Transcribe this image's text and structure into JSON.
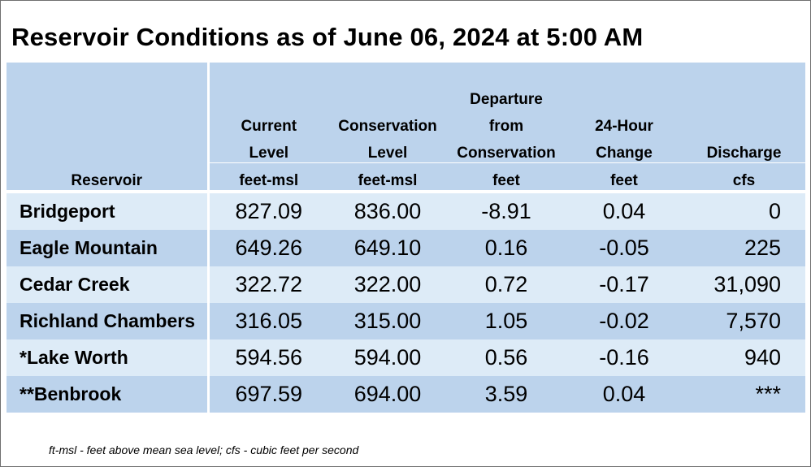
{
  "title": "Reservoir Conditions as of June 06, 2024 at 5:00 AM",
  "chart_data": {
    "type": "table",
    "columns": [
      {
        "lines": [
          "",
          "",
          "",
          "Reservoir"
        ],
        "unit": ""
      },
      {
        "lines": [
          "",
          "Current",
          "Level",
          "feet-msl"
        ],
        "unit": "feet-msl"
      },
      {
        "lines": [
          "",
          "Conservation",
          "Level",
          "feet-msl"
        ],
        "unit": "feet-msl"
      },
      {
        "lines": [
          "Departure",
          "from",
          "Conservation",
          "feet"
        ],
        "unit": "feet"
      },
      {
        "lines": [
          "",
          "24-Hour",
          "Change",
          "feet"
        ],
        "unit": "feet"
      },
      {
        "lines": [
          "",
          "",
          "Discharge",
          "cfs"
        ],
        "unit": "cfs"
      }
    ],
    "rows": [
      {
        "reservoir": "Bridgeport",
        "current_level": "827.09",
        "conservation_level": "836.00",
        "departure": "-8.91",
        "change_24h": "0.04",
        "discharge": "0"
      },
      {
        "reservoir": "Eagle Mountain",
        "current_level": "649.26",
        "conservation_level": "649.10",
        "departure": "0.16",
        "change_24h": "-0.05",
        "discharge": "225"
      },
      {
        "reservoir": "Cedar Creek",
        "current_level": "322.72",
        "conservation_level": "322.00",
        "departure": "0.72",
        "change_24h": "-0.17",
        "discharge": "31,090"
      },
      {
        "reservoir": "Richland Chambers",
        "current_level": "316.05",
        "conservation_level": "315.00",
        "departure": "1.05",
        "change_24h": "-0.02",
        "discharge": "7,570"
      },
      {
        "reservoir": "*Lake Worth",
        "current_level": "594.56",
        "conservation_level": "594.00",
        "departure": "0.56",
        "change_24h": "-0.16",
        "discharge": "940"
      },
      {
        "reservoir": "**Benbrook",
        "current_level": "697.59",
        "conservation_level": "694.00",
        "departure": "3.59",
        "change_24h": "0.04",
        "discharge": "***"
      }
    ]
  },
  "footnote": "ft-msl - feet above mean sea level; cfs - cubic feet per second",
  "colors": {
    "header_bg": "#bcd3ec",
    "row_light": "#ddebf7",
    "row_dark": "#bcd3ec",
    "separator": "#ffffff"
  }
}
